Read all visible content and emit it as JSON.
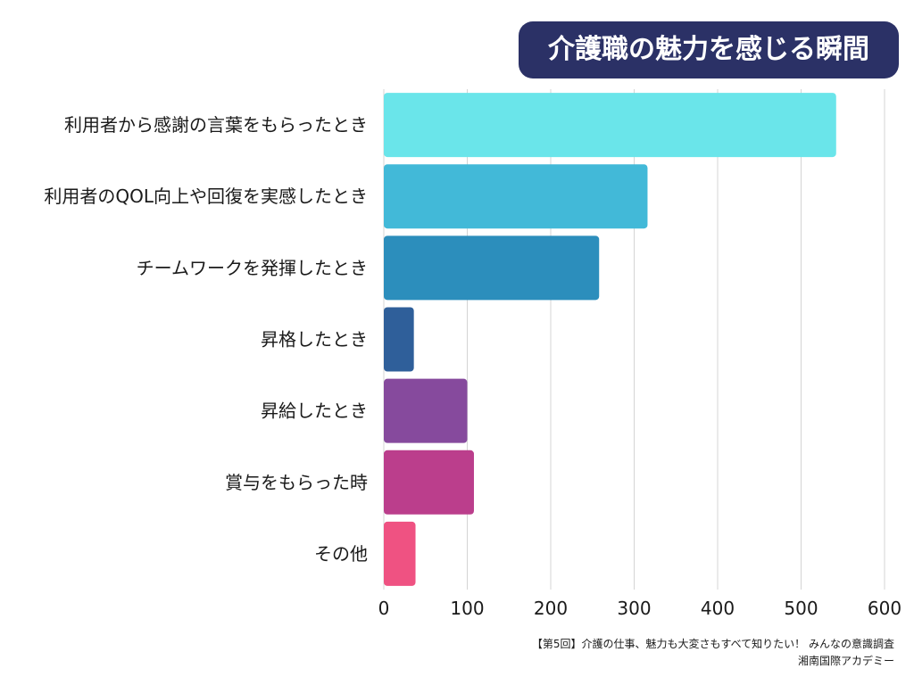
{
  "chart_data": {
    "type": "bar",
    "orientation": "horizontal",
    "title": "介護職の魅力を感じる瞬間",
    "categories": [
      "利用者から感謝の言葉をもらったとき",
      "利用者のQOL向上や回復を実感したとき",
      "チームワークを発揮したとき",
      "昇格したとき",
      "昇給したとき",
      "賞与をもらった時",
      "その他"
    ],
    "values": [
      542,
      316,
      258,
      36,
      100,
      108,
      38
    ],
    "bar_colors": [
      "#6ae5ea",
      "#42b9d8",
      "#2c8ebc",
      "#2f5f9a",
      "#864a9d",
      "#bb3e8c",
      "#ef5282"
    ],
    "xlim": [
      0,
      600
    ],
    "x_ticks": [
      0,
      100,
      200,
      300,
      400,
      500,
      600
    ],
    "x_tick_labels": [
      "0",
      "100",
      "200",
      "300",
      "400",
      "500",
      "600"
    ],
    "grid": true,
    "xlabel": "",
    "ylabel": ""
  },
  "title_style": {
    "background": "#2b3166",
    "text_color": "#ffffff"
  },
  "footer": {
    "line1": "【第5回】介護の仕事、魅力も大変さもすべて知りたい！ みんなの意識調査",
    "line2": "湘南国際アカデミー"
  }
}
